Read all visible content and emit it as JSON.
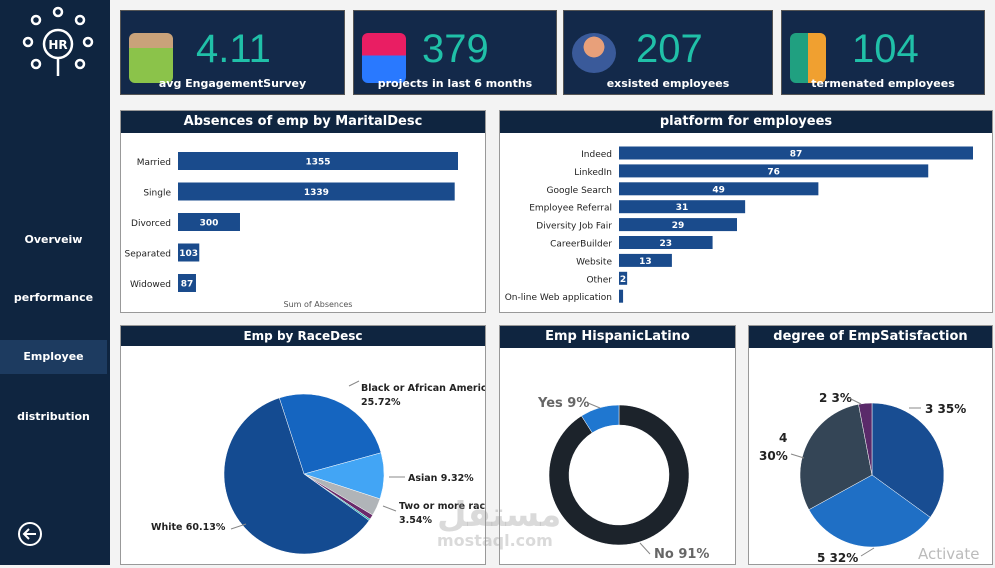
{
  "sidebar": {
    "logo_text": "HR",
    "items": [
      {
        "label": "Overveiw"
      },
      {
        "label": "performance"
      },
      {
        "label": "Employee",
        "active": true
      },
      {
        "label": "distribution"
      }
    ],
    "back_icon": "arrow-left-circle-icon"
  },
  "kpis": [
    {
      "value": "4.11",
      "label": "avg EngagementSurvey",
      "icon": "employee-survey-icon"
    },
    {
      "value": "379",
      "label": "projects in last 6 months",
      "icon": "engineer-project-icon"
    },
    {
      "value": "207",
      "label": "exsisted employees",
      "icon": "employees-group-icon"
    },
    {
      "value": "104",
      "label": "termenated employees",
      "icon": "leaving-employee-icon"
    }
  ],
  "colors": {
    "navy": "#0f2540",
    "bar": "#1a4b8c",
    "accent": "#20c0a8"
  },
  "chart_data": [
    {
      "type": "bar",
      "orientation": "horizontal",
      "title": "Absences of emp by MaritalDesc",
      "xlabel": "Sum of Absences",
      "categories": [
        "Married",
        "Single",
        "Divorced",
        "Separated",
        "Widowed"
      ],
      "values": [
        1355,
        1339,
        300,
        103,
        87
      ]
    },
    {
      "type": "bar",
      "orientation": "horizontal",
      "title": "platform for employees",
      "categories": [
        "Indeed",
        "LinkedIn",
        "Google Search",
        "Employee Referral",
        "Diversity Job Fair",
        "CareerBuilder",
        "Website",
        "Other",
        "On-line Web application"
      ],
      "values": [
        87,
        76,
        49,
        31,
        29,
        23,
        13,
        2,
        1
      ],
      "labels": [
        "87",
        "76",
        "49",
        "31",
        "29",
        "23",
        "13",
        "2",
        ""
      ]
    },
    {
      "type": "pie",
      "title": "Emp by RaceDesc",
      "slices": [
        {
          "name": "Black or African American",
          "value": 25.72,
          "label": "25.72%",
          "color": "#1565c0"
        },
        {
          "name": "Asian",
          "value": 9.32,
          "label": "9.32%",
          "color": "#42a5f5"
        },
        {
          "name": "Two or more races",
          "value": 3.54,
          "label": "3.54%",
          "color": "#b0b4b8"
        },
        {
          "name": "",
          "value": 0.97,
          "label": "",
          "color": "#6a2a6a"
        },
        {
          "name": "",
          "value": 0.32,
          "label": "",
          "color": "#20b0b0"
        },
        {
          "name": "White",
          "value": 60.13,
          "label": "60.13%",
          "color": "#144b91"
        }
      ]
    },
    {
      "type": "pie",
      "donut": true,
      "title": "Emp HispanicLatino",
      "slices": [
        {
          "name": "No",
          "value": 91,
          "label": "91%",
          "color": "#1c232b"
        },
        {
          "name": "Yes",
          "value": 9,
          "label": "9%",
          "color": "#1f77d0"
        }
      ]
    },
    {
      "type": "pie",
      "title": "degree of EmpSatisfaction",
      "slices": [
        {
          "name": "3",
          "value": 35,
          "label": "35%",
          "color": "#184d92"
        },
        {
          "name": "5",
          "value": 32,
          "label": "32%",
          "color": "#1f6fc5"
        },
        {
          "name": "4",
          "value": 30,
          "label": "30%",
          "color": "#344556"
        },
        {
          "name": "2",
          "value": 3,
          "label": "3%",
          "color": "#5a2a6a"
        }
      ]
    }
  ],
  "watermark": {
    "arabic": "مستقل",
    "latin": "mostaql.com"
  },
  "activate_text": "Activate"
}
